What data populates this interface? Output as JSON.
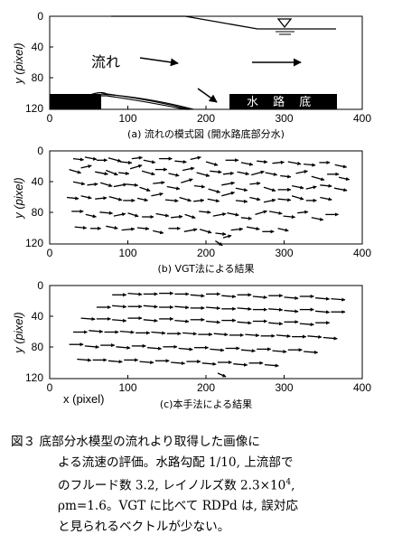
{
  "panel_a": {
    "y_label": "y (pixel)",
    "x_ticks": [
      "0",
      "100",
      "200",
      "300",
      "400"
    ],
    "y_ticks": [
      "0",
      "40",
      "80",
      "120"
    ],
    "flow_label": "流れ",
    "channel_label": "水 路 底",
    "caption": "(a) 流れの模式図 (開水路底部分水)"
  },
  "panel_b": {
    "y_label": "y (pixel)",
    "x_ticks": [
      "0",
      "100",
      "200",
      "300",
      "400"
    ],
    "y_ticks": [
      "0",
      "40",
      "80",
      "120"
    ],
    "caption": "(b) VGT法による結果"
  },
  "panel_c": {
    "y_label": "y (pixel)",
    "x_label": "x (pixel)",
    "x_ticks": [
      "0",
      "100",
      "200",
      "300",
      "400"
    ],
    "y_ticks": [
      "0",
      "40",
      "80",
      "120"
    ],
    "caption": "(c)本手法による結果"
  },
  "figure_caption": {
    "line1": "図３ 底部分水模型の流れより取得した画像に",
    "line2": "よる流速の評価。水路勾配 1/10, 上流部で",
    "line3_pre": "のフルード数 3.2, レイノルズ数 2.3×10",
    "line3_sup": "4",
    "line3_post": ",",
    "line4": "ρm=1.6。VGT に比べて RDPd は, 誤対応",
    "line5": "と見られるベクトルが少ない。"
  },
  "chart_data": [
    {
      "type": "diagram",
      "panel": "a",
      "xlim": [
        0,
        400
      ],
      "ylim": [
        120,
        0
      ]
    },
    {
      "type": "quiver",
      "panel": "b",
      "xlim": [
        0,
        400
      ],
      "ylim": [
        120,
        0
      ],
      "vectors": [
        [
          30,
          10,
          9,
          1
        ],
        [
          45,
          8,
          10,
          2
        ],
        [
          60,
          12,
          9,
          0
        ],
        [
          75,
          9,
          11,
          3
        ],
        [
          90,
          14,
          10,
          1
        ],
        [
          105,
          10,
          9,
          -1
        ],
        [
          120,
          12,
          10,
          2
        ],
        [
          140,
          10,
          11,
          0
        ],
        [
          160,
          13,
          10,
          1
        ],
        [
          180,
          11,
          9,
          -2
        ],
        [
          200,
          14,
          10,
          3
        ],
        [
          225,
          12,
          11,
          0
        ],
        [
          245,
          15,
          10,
          2
        ],
        [
          265,
          13,
          9,
          1
        ],
        [
          285,
          16,
          10,
          -1
        ],
        [
          305,
          14,
          11,
          2
        ],
        [
          325,
          17,
          10,
          1
        ],
        [
          345,
          15,
          9,
          0
        ],
        [
          365,
          18,
          10,
          2
        ],
        [
          25,
          24,
          10,
          3
        ],
        [
          40,
          22,
          9,
          -2
        ],
        [
          58,
          27,
          11,
          2
        ],
        [
          72,
          25,
          10,
          4
        ],
        [
          88,
          28,
          9,
          1
        ],
        [
          103,
          23,
          10,
          -3
        ],
        [
          118,
          26,
          11,
          3
        ],
        [
          135,
          24,
          10,
          0
        ],
        [
          152,
          29,
          9,
          2
        ],
        [
          170,
          25,
          10,
          -2
        ],
        [
          188,
          28,
          11,
          3
        ],
        [
          205,
          26,
          10,
          1
        ],
        [
          222,
          30,
          9,
          -1
        ],
        [
          240,
          27,
          10,
          2
        ],
        [
          258,
          31,
          11,
          -3
        ],
        [
          276,
          28,
          10,
          2
        ],
        [
          295,
          32,
          9,
          1
        ],
        [
          315,
          29,
          10,
          -2
        ],
        [
          335,
          33,
          11,
          3
        ],
        [
          355,
          30,
          10,
          0
        ],
        [
          370,
          34,
          9,
          2
        ],
        [
          30,
          40,
          10,
          2
        ],
        [
          48,
          44,
          9,
          -1
        ],
        [
          65,
          41,
          10,
          3
        ],
        [
          82,
          46,
          11,
          -2
        ],
        [
          98,
          43,
          10,
          1
        ],
        [
          115,
          47,
          9,
          3
        ],
        [
          132,
          42,
          10,
          -1
        ],
        [
          150,
          46,
          11,
          2
        ],
        [
          168,
          41,
          10,
          -3
        ],
        [
          185,
          45,
          9,
          1
        ],
        [
          203,
          49,
          10,
          3
        ],
        [
          220,
          44,
          11,
          -2
        ],
        [
          238,
          48,
          10,
          2
        ],
        [
          256,
          43,
          9,
          -1
        ],
        [
          274,
          47,
          10,
          3
        ],
        [
          292,
          50,
          11,
          0
        ],
        [
          310,
          45,
          10,
          2
        ],
        [
          328,
          49,
          9,
          -2
        ],
        [
          346,
          44,
          10,
          1
        ],
        [
          364,
          48,
          11,
          2
        ],
        [
          22,
          60,
          10,
          1
        ],
        [
          40,
          58,
          9,
          2
        ],
        [
          58,
          62,
          10,
          -1
        ],
        [
          76,
          59,
          11,
          3
        ],
        [
          94,
          64,
          10,
          0
        ],
        [
          112,
          61,
          9,
          2
        ],
        [
          130,
          58,
          10,
          -2
        ],
        [
          148,
          63,
          11,
          1
        ],
        [
          166,
          60,
          10,
          3
        ],
        [
          184,
          65,
          9,
          -1
        ],
        [
          202,
          62,
          10,
          2
        ],
        [
          220,
          58,
          11,
          -3
        ],
        [
          238,
          64,
          10,
          1
        ],
        [
          256,
          60,
          9,
          2
        ],
        [
          274,
          66,
          10,
          -2
        ],
        [
          292,
          62,
          11,
          1
        ],
        [
          310,
          58,
          10,
          3
        ],
        [
          328,
          64,
          9,
          0
        ],
        [
          346,
          60,
          10,
          2
        ],
        [
          28,
          78,
          10,
          0
        ],
        [
          46,
          82,
          9,
          2
        ],
        [
          64,
          79,
          11,
          1
        ],
        [
          82,
          84,
          10,
          -2
        ],
        [
          100,
          80,
          9,
          3
        ],
        [
          118,
          85,
          10,
          0
        ],
        [
          136,
          81,
          11,
          2
        ],
        [
          155,
          86,
          10,
          -1
        ],
        [
          173,
          82,
          9,
          3
        ],
        [
          191,
          78,
          10,
          1
        ],
        [
          209,
          84,
          11,
          -2
        ],
        [
          227,
          80,
          10,
          2
        ],
        [
          245,
          86,
          9,
          1
        ],
        [
          263,
          82,
          10,
          -3
        ],
        [
          281,
          78,
          11,
          2
        ],
        [
          299,
          84,
          10,
          1
        ],
        [
          317,
          80,
          9,
          -1
        ],
        [
          335,
          86,
          10,
          2
        ],
        [
          353,
          82,
          11,
          0
        ],
        [
          32,
          98,
          10,
          1
        ],
        [
          52,
          100,
          9,
          0
        ],
        [
          72,
          97,
          10,
          2
        ],
        [
          92,
          102,
          11,
          -1
        ],
        [
          112,
          99,
          10,
          1
        ],
        [
          132,
          103,
          9,
          2
        ],
        [
          152,
          100,
          10,
          0
        ],
        [
          172,
          104,
          11,
          -2
        ],
        [
          192,
          101,
          10,
          3
        ],
        [
          212,
          106,
          9,
          1
        ],
        [
          232,
          102,
          10,
          -1
        ],
        [
          252,
          98,
          11,
          2
        ],
        [
          272,
          104,
          10,
          0
        ],
        [
          292,
          100,
          9,
          2
        ],
        [
          212,
          116,
          6,
          4
        ],
        [
          222,
          112,
          7,
          -2
        ]
      ]
    },
    {
      "type": "quiver",
      "panel": "c",
      "xlim": [
        0,
        400
      ],
      "ylim": [
        120,
        0
      ],
      "vectors": [
        [
          80,
          12,
          12,
          0
        ],
        [
          100,
          10,
          12,
          1
        ],
        [
          120,
          11,
          12,
          0
        ],
        [
          140,
          10,
          12,
          0
        ],
        [
          160,
          11,
          12,
          0
        ],
        [
          180,
          12,
          12,
          1
        ],
        [
          200,
          11,
          12,
          0
        ],
        [
          220,
          13,
          12,
          1
        ],
        [
          240,
          12,
          12,
          0
        ],
        [
          260,
          14,
          12,
          1
        ],
        [
          280,
          13,
          12,
          0
        ],
        [
          300,
          15,
          12,
          1
        ],
        [
          320,
          14,
          12,
          0
        ],
        [
          340,
          16,
          12,
          1
        ],
        [
          360,
          17,
          12,
          1
        ],
        [
          60,
          28,
          12,
          0
        ],
        [
          80,
          26,
          12,
          1
        ],
        [
          100,
          27,
          12,
          0
        ],
        [
          120,
          26,
          12,
          1
        ],
        [
          140,
          28,
          12,
          0
        ],
        [
          160,
          27,
          12,
          1
        ],
        [
          180,
          29,
          12,
          0
        ],
        [
          200,
          28,
          12,
          1
        ],
        [
          220,
          30,
          12,
          0
        ],
        [
          240,
          29,
          12,
          1
        ],
        [
          260,
          31,
          12,
          0
        ],
        [
          280,
          30,
          12,
          1
        ],
        [
          300,
          32,
          12,
          1
        ],
        [
          320,
          31,
          12,
          0
        ],
        [
          340,
          33,
          12,
          1
        ],
        [
          360,
          34,
          12,
          0
        ],
        [
          40,
          42,
          12,
          1
        ],
        [
          60,
          43,
          12,
          0
        ],
        [
          80,
          44,
          12,
          1
        ],
        [
          100,
          42,
          12,
          0
        ],
        [
          120,
          44,
          12,
          1
        ],
        [
          140,
          43,
          12,
          0
        ],
        [
          160,
          45,
          12,
          1
        ],
        [
          180,
          44,
          12,
          0
        ],
        [
          200,
          46,
          12,
          1
        ],
        [
          220,
          45,
          12,
          0
        ],
        [
          240,
          47,
          12,
          1
        ],
        [
          260,
          46,
          12,
          0
        ],
        [
          280,
          48,
          12,
          1
        ],
        [
          300,
          47,
          12,
          0
        ],
        [
          320,
          49,
          12,
          1
        ],
        [
          340,
          48,
          12,
          0
        ],
        [
          30,
          60,
          12,
          0
        ],
        [
          50,
          58,
          12,
          1
        ],
        [
          70,
          60,
          12,
          0
        ],
        [
          90,
          59,
          12,
          1
        ],
        [
          110,
          61,
          12,
          0
        ],
        [
          130,
          60,
          12,
          1
        ],
        [
          150,
          62,
          12,
          0
        ],
        [
          170,
          61,
          12,
          1
        ],
        [
          190,
          63,
          12,
          0
        ],
        [
          210,
          62,
          12,
          1
        ],
        [
          230,
          64,
          12,
          0
        ],
        [
          250,
          63,
          12,
          1
        ],
        [
          270,
          65,
          12,
          0
        ],
        [
          290,
          64,
          12,
          1
        ],
        [
          310,
          66,
          12,
          0
        ],
        [
          330,
          65,
          12,
          1
        ],
        [
          350,
          67,
          12,
          1
        ],
        [
          25,
          76,
          12,
          0
        ],
        [
          45,
          78,
          12,
          1
        ],
        [
          65,
          77,
          12,
          0
        ],
        [
          85,
          79,
          12,
          1
        ],
        [
          105,
          78,
          12,
          0
        ],
        [
          125,
          80,
          12,
          1
        ],
        [
          145,
          79,
          12,
          0
        ],
        [
          165,
          81,
          12,
          1
        ],
        [
          185,
          80,
          12,
          0
        ],
        [
          205,
          82,
          12,
          1
        ],
        [
          225,
          81,
          12,
          0
        ],
        [
          245,
          83,
          12,
          1
        ],
        [
          265,
          82,
          12,
          0
        ],
        [
          285,
          84,
          12,
          1
        ],
        [
          305,
          83,
          12,
          0
        ],
        [
          325,
          85,
          12,
          1
        ],
        [
          35,
          95,
          12,
          1
        ],
        [
          55,
          96,
          12,
          0
        ],
        [
          75,
          97,
          12,
          1
        ],
        [
          95,
          96,
          12,
          0
        ],
        [
          115,
          98,
          12,
          1
        ],
        [
          135,
          97,
          12,
          0
        ],
        [
          155,
          99,
          12,
          1
        ],
        [
          175,
          98,
          12,
          0
        ],
        [
          195,
          100,
          12,
          1
        ],
        [
          215,
          99,
          12,
          0
        ],
        [
          235,
          101,
          12,
          1
        ],
        [
          255,
          100,
          12,
          0
        ],
        [
          275,
          102,
          12,
          1
        ],
        [
          215,
          113,
          7,
          3
        ]
      ]
    }
  ]
}
